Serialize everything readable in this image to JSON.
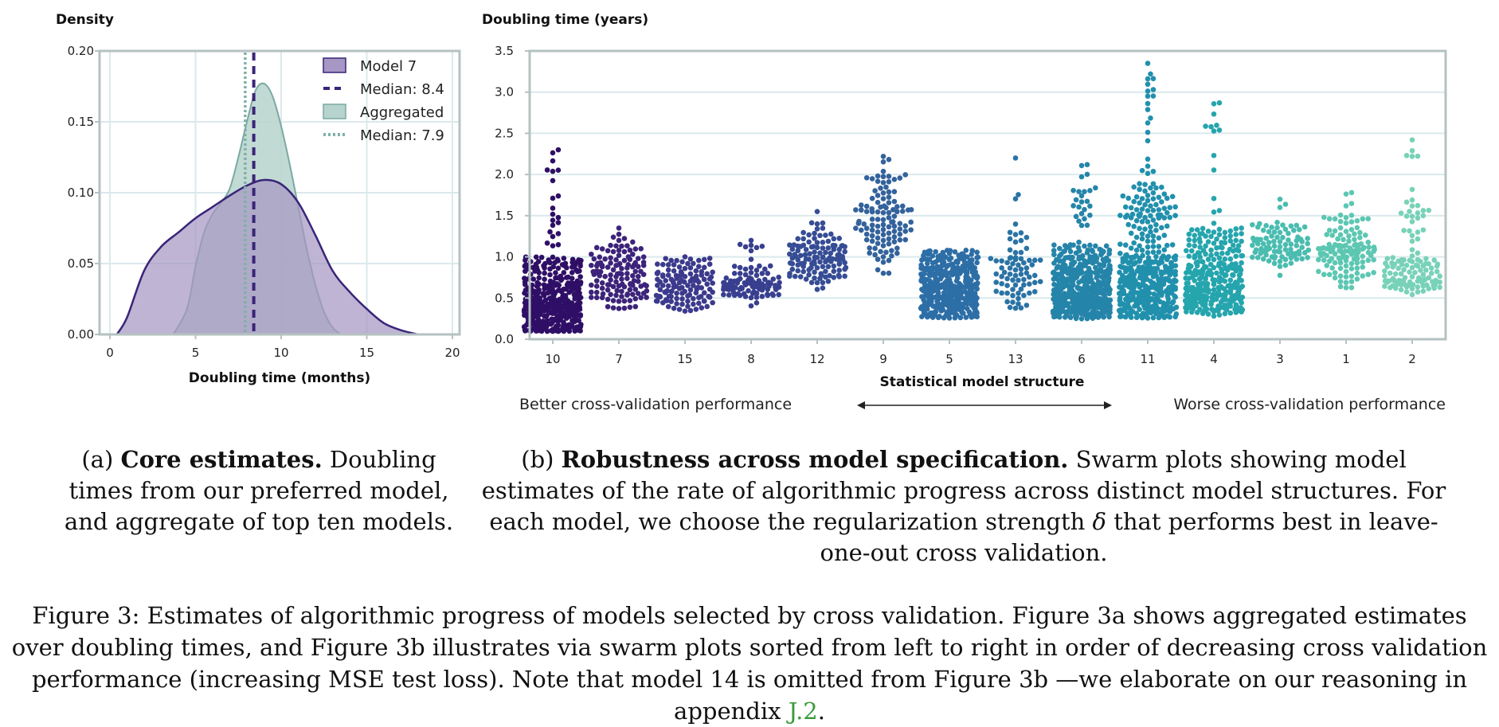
{
  "panel_a": {
    "ylabel": "Density",
    "xlabel": "Doubling time (months)",
    "legend": [
      "Model 7",
      "Median: 8.4",
      "Aggregated",
      "Median: 7.9"
    ],
    "caption_label": "(a)",
    "caption_bold": "Core estimates.",
    "caption_rest": "Doubling times from our preferred model, and aggregate of top ten models."
  },
  "panel_b": {
    "ylabel": "Doubling time (years)",
    "xlabel": "Statistical model structure",
    "left_note": "Better cross-validation performance",
    "right_note": "Worse cross-validation performance",
    "caption_label": "(b)",
    "caption_bold": "Robustness across model specification.",
    "caption_rest_1": "Swarm plots showing model estimates of the rate of algorithmic progress across distinct model structures. For each model, we choose the regularization strength",
    "caption_delta": "δ",
    "caption_rest_2": "that performs best in leave-one-out cross validation."
  },
  "figure_caption": {
    "label": "Figure 3:",
    "text": "Estimates of algorithmic progress of models selected by cross validation. Figure 3a shows aggregated estimates over doubling times, and Figure 3b illustrates via swarm plots sorted from left to right in order of decreasing cross validation performance (increasing MSE test loss). Note that model 14 is omitted from Figure 3b —we elaborate on our reasoning in appendix",
    "link": "J.2",
    "end": "."
  },
  "colors": {
    "model7_fill": "#a697c4",
    "model7_line": "#3a2478",
    "median7": "#3a2478",
    "agg_fill": "#b7d3cd",
    "agg_line": "#7ba9a3",
    "median_agg": "#7fb0a8",
    "grid": "#dbe9ec",
    "frame": "#b5c2c2"
  },
  "chart_data": [
    {
      "type": "area",
      "xlabel": "Doubling time (months)",
      "ylabel": "Density",
      "xlim": [
        0,
        20
      ],
      "ylim": [
        0,
        0.2
      ],
      "xticks": [
        0,
        5,
        10,
        15,
        20
      ],
      "yticks": [
        0.0,
        0.05,
        0.1,
        0.15,
        0.2
      ],
      "grid": true,
      "legend_position": "top-right",
      "series": [
        {
          "name": "Model 7",
          "x": [
            0.4,
            1,
            2,
            3,
            4,
            5,
            6,
            7,
            8,
            9,
            10,
            11,
            12,
            13,
            14,
            15,
            16,
            17,
            18
          ],
          "y": [
            0.0,
            0.012,
            0.045,
            0.062,
            0.072,
            0.082,
            0.09,
            0.098,
            0.105,
            0.109,
            0.106,
            0.093,
            0.07,
            0.045,
            0.03,
            0.018,
            0.008,
            0.003,
            0.0
          ]
        },
        {
          "name": "Aggregated",
          "x": [
            3.7,
            4.5,
            5,
            5.5,
            6,
            6.5,
            7,
            7.5,
            8,
            8.5,
            9,
            9.5,
            10,
            10.5,
            11,
            11.5,
            12,
            12.5,
            13,
            13.5
          ],
          "y": [
            0.0,
            0.018,
            0.048,
            0.072,
            0.085,
            0.093,
            0.103,
            0.125,
            0.15,
            0.172,
            0.177,
            0.168,
            0.147,
            0.12,
            0.09,
            0.06,
            0.035,
            0.016,
            0.005,
            0.0
          ]
        }
      ],
      "medians": [
        {
          "name": "Median: 8.4",
          "x": 8.4
        },
        {
          "name": "Median: 7.9",
          "x": 7.9
        }
      ]
    },
    {
      "type": "scatter",
      "subtype": "swarm",
      "xlabel": "Statistical model structure",
      "ylabel": "Doubling time (years)",
      "ylim": [
        0,
        3.5
      ],
      "yticks": [
        0.0,
        0.5,
        1.0,
        1.5,
        2.0,
        2.5,
        3.0,
        3.5
      ],
      "grid": true,
      "categories": [
        "10",
        "7",
        "15",
        "8",
        "12",
        "9",
        "5",
        "13",
        "6",
        "11",
        "4",
        "3",
        "1",
        "2"
      ],
      "colors": [
        "#2f0f66",
        "#3d237a",
        "#3c3a8c",
        "#393f8f",
        "#364c95",
        "#33629c",
        "#2d6ea6",
        "#2a73a5",
        "#2584a9",
        "#2190ad",
        "#25a5ad",
        "#4abcb0",
        "#5cc7b2",
        "#78d2b8"
      ],
      "distributions": [
        {
          "category": "10",
          "n": 470,
          "q05": 0.12,
          "q25": 0.3,
          "median": 0.45,
          "q75": 0.68,
          "q95": 1.0,
          "max": 2.3
        },
        {
          "category": "7",
          "n": 130,
          "q05": 0.45,
          "q25": 0.65,
          "median": 0.78,
          "q75": 0.9,
          "q95": 1.15,
          "max": 1.35
        },
        {
          "category": "15",
          "n": 130,
          "q05": 0.42,
          "q25": 0.56,
          "median": 0.66,
          "q75": 0.78,
          "q95": 0.93,
          "max": 1.0
        },
        {
          "category": "8",
          "n": 110,
          "q05": 0.5,
          "q25": 0.6,
          "median": 0.68,
          "q75": 0.76,
          "q95": 0.9,
          "max": 1.2
        },
        {
          "category": "12",
          "n": 125,
          "q05": 0.75,
          "q25": 0.88,
          "median": 0.98,
          "q75": 1.1,
          "q95": 1.3,
          "max": 1.55
        },
        {
          "category": "9",
          "n": 110,
          "q05": 1.0,
          "q25": 1.28,
          "median": 1.45,
          "q75": 1.65,
          "q95": 2.0,
          "max": 2.22
        },
        {
          "category": "5",
          "n": 440,
          "q05": 0.32,
          "q25": 0.47,
          "median": 0.63,
          "q75": 0.82,
          "q95": 1.0,
          "max": 1.08
        },
        {
          "category": "13",
          "n": 75,
          "q05": 0.4,
          "q25": 0.65,
          "median": 0.82,
          "q75": 1.0,
          "q95": 1.5,
          "max": 2.2
        },
        {
          "category": "6",
          "n": 520,
          "q05": 0.3,
          "q25": 0.45,
          "median": 0.6,
          "q75": 0.82,
          "q95": 1.15,
          "max": 2.12
        },
        {
          "category": "11",
          "n": 480,
          "q05": 0.32,
          "q25": 0.55,
          "median": 0.75,
          "q75": 1.02,
          "q95": 1.9,
          "max": 3.35
        },
        {
          "category": "4",
          "n": 330,
          "q05": 0.35,
          "q25": 0.5,
          "median": 0.7,
          "q75": 0.92,
          "q95": 1.35,
          "max": 2.87
        },
        {
          "category": "3",
          "n": 95,
          "q05": 0.95,
          "q25": 1.05,
          "median": 1.12,
          "q75": 1.22,
          "q95": 1.42,
          "max": 1.7
        },
        {
          "category": "1",
          "n": 130,
          "q05": 0.7,
          "q25": 0.95,
          "median": 1.08,
          "q75": 1.22,
          "q95": 1.5,
          "max": 1.78
        },
        {
          "category": "2",
          "n": 120,
          "q05": 0.6,
          "q25": 0.7,
          "median": 0.82,
          "q75": 0.98,
          "q95": 1.7,
          "max": 2.42
        }
      ]
    }
  ]
}
